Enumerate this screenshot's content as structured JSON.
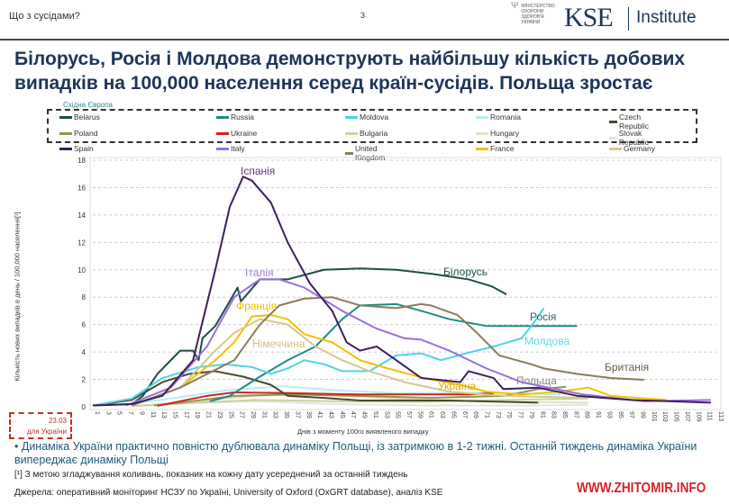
{
  "header": {
    "section": "Що з сусідами?",
    "page_number": "3",
    "ministry": "МІНІСТЕРСТВО ОХОРОНИ ЗДОРОВ'Я УКРАЇНИ",
    "brand": "KSE",
    "brand_suffix": "Institute"
  },
  "title": "Білорусь, Росія і Молдова демонструють найбільшу кількість добових випадків на 100,000 населення серед країн-сусідів. Польща зростає",
  "legend_group_label": "Східна Європа",
  "ukraine_start": {
    "date": "23.03",
    "label": "для України"
  },
  "bullet": "Динаміка України практично повністю дублювала динаміку Польщі, із затримкою в 1-2 тижні. Останній тиждень динаміка України випереджає динаміку Польщі",
  "footnote": "[¹] З метою згладжування коливань, показник на кожну дату усереднений за останній тиждень",
  "source": "Джерела: оперативний моніторинг НСЗУ по Україні, University of Oxford (OxGRT database), аналіз KSE",
  "watermark": "WWW.ZHITOMIR.INFO",
  "chart_data": {
    "type": "line",
    "title": "",
    "xlabel": "Днів з моменту 100го виявленого випадку",
    "ylabel": "Кількість нових випадків в день / 100,000 населення[¹]",
    "xlim": [
      1,
      113
    ],
    "ylim": [
      0,
      18
    ],
    "yticks": [
      "0",
      "2",
      "4",
      "6",
      "8",
      "10",
      "12",
      "14",
      "16",
      "18"
    ],
    "xticks": [
      "1",
      "3",
      "5",
      "7",
      "9",
      "11",
      "13",
      "15",
      "17",
      "19",
      "21",
      "23",
      "25",
      "27",
      "29",
      "31",
      "33",
      "35",
      "37",
      "39",
      "41",
      "43",
      "45",
      "47",
      "49",
      "51",
      "53",
      "55",
      "57",
      "59",
      "61",
      "63",
      "65",
      "67",
      "69",
      "71",
      "73",
      "75",
      "77",
      "79",
      "81",
      "83",
      "85",
      "87",
      "89",
      "91",
      "93",
      "95",
      "97",
      "99",
      "101",
      "103",
      "105",
      "107",
      "109",
      "111",
      "113"
    ],
    "grid": "horizontal dashed",
    "series": [
      {
        "name": "Belarus",
        "label": "Білорусь",
        "color": "#1e4f48",
        "points": [
          [
            1,
            0.1
          ],
          [
            8,
            0.2
          ],
          [
            10,
            0.8
          ],
          [
            12.6,
            2.4
          ],
          [
            15,
            3.4
          ],
          [
            16.7,
            4.1
          ],
          [
            19,
            4.1
          ],
          [
            20,
            3.4
          ],
          [
            20.7,
            5
          ],
          [
            23,
            5.9
          ],
          [
            26,
            8
          ],
          [
            27,
            8.7
          ],
          [
            27.6,
            7.7
          ],
          [
            31,
            9.3
          ],
          [
            36,
            9.3
          ],
          [
            42.5,
            10
          ],
          [
            49,
            10.1
          ],
          [
            55.5,
            10
          ],
          [
            62,
            9.7
          ],
          [
            68.5,
            9.3
          ],
          [
            72.6,
            8.8
          ],
          [
            75.3,
            8.2
          ]
        ]
      },
      {
        "name": "Russia",
        "label": "Росія",
        "color": "#1f8a86",
        "points": [
          [
            22,
            0.4
          ],
          [
            25.6,
            0.8
          ],
          [
            31,
            2.2
          ],
          [
            36,
            3.4
          ],
          [
            41,
            4.4
          ],
          [
            45.8,
            6.4
          ],
          [
            49,
            7.4
          ],
          [
            55.5,
            7.5
          ],
          [
            60,
            7
          ],
          [
            65,
            6.4
          ],
          [
            71.7,
            5.9
          ],
          [
            78,
            5.9
          ],
          [
            88,
            5.9
          ]
        ]
      },
      {
        "name": "Moldova",
        "label": "Молдова",
        "color": "#4fd3e3",
        "points": [
          [
            1,
            0.1
          ],
          [
            8,
            0.6
          ],
          [
            13.5,
            2.1
          ],
          [
            20,
            2.9
          ],
          [
            24.8,
            3.1
          ],
          [
            29.6,
            2.9
          ],
          [
            33,
            2.4
          ],
          [
            36,
            2.8
          ],
          [
            39,
            3.4
          ],
          [
            42.6,
            3.1
          ],
          [
            45.8,
            2.6
          ],
          [
            50.7,
            2.6
          ],
          [
            55.5,
            3.75
          ],
          [
            60,
            3.9
          ],
          [
            63.5,
            3.4
          ],
          [
            68,
            3.9
          ],
          [
            73,
            4.4
          ],
          [
            78,
            5
          ],
          [
            79.8,
            5.9
          ],
          [
            82,
            7.2
          ]
        ]
      },
      {
        "name": "Romania",
        "color": "#b9ecef",
        "points": [
          [
            5,
            0.1
          ],
          [
            15,
            0.6
          ],
          [
            25,
            1.2
          ],
          [
            35,
            1.5
          ],
          [
            45,
            1.2
          ],
          [
            55,
            1.0
          ],
          [
            65,
            1.0
          ],
          [
            75,
            1.0
          ],
          [
            85,
            0.9
          ]
        ]
      },
      {
        "name": "Czech Republic",
        "color": "#4a4a2a",
        "points": [
          [
            1,
            0.1
          ],
          [
            8,
            0.5
          ],
          [
            13.5,
            1.8
          ],
          [
            18.3,
            2.4
          ],
          [
            23,
            2.6
          ],
          [
            28,
            2.2
          ],
          [
            33,
            1.6
          ],
          [
            36,
            0.8
          ],
          [
            42.6,
            0.65
          ],
          [
            49,
            0.46
          ],
          [
            65,
            0.46
          ],
          [
            81,
            0.3
          ]
        ]
      },
      {
        "name": "Poland",
        "label": "Польща",
        "color": "#8a9a4a",
        "points": [
          [
            12,
            0.1
          ],
          [
            16.7,
            0.3
          ],
          [
            26.4,
            0.8
          ],
          [
            36,
            0.9
          ],
          [
            49,
            0.8
          ],
          [
            61.7,
            0.65
          ],
          [
            75,
            0.8
          ],
          [
            81,
            1.3
          ],
          [
            86,
            1.45
          ]
        ]
      },
      {
        "name": "Ukraine",
        "label": "Україна",
        "color": "#d42020",
        "points": [
          [
            12.6,
            0.07
          ],
          [
            21.5,
            0.8
          ],
          [
            26.4,
            1.05
          ],
          [
            36,
            1
          ],
          [
            49,
            0.9
          ],
          [
            58.6,
            0.9
          ],
          [
            68.5,
            0.9
          ],
          [
            73,
            1
          ]
        ]
      },
      {
        "name": "Bulgaria",
        "color": "#c8d3a0",
        "points": [
          [
            8,
            0.05
          ],
          [
            20,
            0.3
          ],
          [
            30,
            0.5
          ],
          [
            45,
            0.4
          ],
          [
            60,
            0.35
          ],
          [
            75,
            0.5
          ],
          [
            90,
            0.6
          ]
        ]
      },
      {
        "name": "Hungary",
        "color": "#e3e0c0",
        "points": [
          [
            8,
            0.05
          ],
          [
            20,
            0.4
          ],
          [
            30,
            0.8
          ],
          [
            40,
            0.9
          ],
          [
            55,
            0.6
          ],
          [
            70,
            0.4
          ],
          [
            90,
            0.3
          ]
        ]
      },
      {
        "name": "Slovak Republic",
        "color": "#e4e4e4",
        "points": [
          [
            8,
            0.05
          ],
          [
            20,
            0.3
          ],
          [
            30,
            0.4
          ],
          [
            45,
            0.2
          ],
          [
            60,
            0.1
          ],
          [
            80,
            0.1
          ],
          [
            90,
            0.15
          ]
        ]
      },
      {
        "name": "Spain",
        "label": "Іспанія",
        "color": "#3d1f5e",
        "points": [
          [
            1,
            0.1
          ],
          [
            8,
            0.2
          ],
          [
            13.5,
            0.8
          ],
          [
            19,
            3.4
          ],
          [
            23,
            10
          ],
          [
            25.6,
            14.6
          ],
          [
            28,
            16.8
          ],
          [
            29.6,
            16.5
          ],
          [
            33,
            14.9
          ],
          [
            36,
            12
          ],
          [
            40,
            9
          ],
          [
            44,
            7
          ],
          [
            46.6,
            4.7
          ],
          [
            49,
            4.1
          ],
          [
            52,
            4.4
          ],
          [
            55.5,
            3.4
          ],
          [
            60,
            2.1
          ],
          [
            67,
            1.8
          ],
          [
            68.5,
            2.6
          ],
          [
            73,
            2.1
          ],
          [
            74.7,
            1.3
          ],
          [
            81,
            1.4
          ],
          [
            88,
            0.8
          ],
          [
            97.6,
            0.5
          ],
          [
            112,
            0.3
          ]
        ]
      },
      {
        "name": "Italy",
        "label": "Італія",
        "color": "#9a6ee0",
        "points": [
          [
            7,
            0.1
          ],
          [
            15,
            1.4
          ],
          [
            21.5,
            4.4
          ],
          [
            26.4,
            8
          ],
          [
            31,
            9.3
          ],
          [
            34.5,
            9.3
          ],
          [
            39,
            8.7
          ],
          [
            45.8,
            7
          ],
          [
            52,
            5.7
          ],
          [
            57,
            5
          ],
          [
            60,
            4.9
          ],
          [
            65,
            4.1
          ],
          [
            71.7,
            2.8
          ],
          [
            78,
            1.8
          ],
          [
            89,
            0.9
          ],
          [
            100,
            0.4
          ],
          [
            112,
            0.5
          ]
        ]
      },
      {
        "name": "United Kingdom",
        "label": "Британія",
        "color": "#8a7d5a",
        "points": [
          [
            8,
            0.1
          ],
          [
            16.7,
            1.4
          ],
          [
            26.4,
            3.4
          ],
          [
            31,
            6
          ],
          [
            34.5,
            7.4
          ],
          [
            39,
            7.9
          ],
          [
            44,
            8
          ],
          [
            49,
            7.4
          ],
          [
            55.5,
            7.2
          ],
          [
            60,
            7.5
          ],
          [
            61.7,
            7.4
          ],
          [
            66.5,
            6.7
          ],
          [
            70,
            5.4
          ],
          [
            74,
            3.75
          ],
          [
            79.8,
            3.1
          ],
          [
            82,
            2.8
          ],
          [
            88,
            2.4
          ],
          [
            94,
            2.1
          ],
          [
            100,
            1.97
          ]
        ]
      },
      {
        "name": "France",
        "label": "Франція",
        "color": "#f2c200",
        "points": [
          [
            8,
            0.1
          ],
          [
            16.7,
            1.4
          ],
          [
            23,
            3.4
          ],
          [
            26.4,
            4.7
          ],
          [
            29.6,
            6.6
          ],
          [
            33,
            6.7
          ],
          [
            36,
            6.4
          ],
          [
            39,
            5.3
          ],
          [
            44,
            4.7
          ],
          [
            49,
            3.4
          ],
          [
            54,
            2.8
          ],
          [
            60.4,
            2.1
          ],
          [
            67,
            1.6
          ],
          [
            71.7,
            1.1
          ],
          [
            78,
            0.9
          ],
          [
            84.7,
            1.1
          ],
          [
            90,
            1.4
          ],
          [
            94,
            0.8
          ],
          [
            104,
            0.5
          ]
        ]
      },
      {
        "name": "Germany",
        "label": "Німеччина",
        "color": "#d8c888",
        "points": [
          [
            8,
            0.1
          ],
          [
            16.7,
            1.4
          ],
          [
            23,
            4.1
          ],
          [
            26.4,
            5.4
          ],
          [
            31,
            6.4
          ],
          [
            36,
            6
          ],
          [
            41,
            4.4
          ],
          [
            45.8,
            3.4
          ],
          [
            50.7,
            2.6
          ],
          [
            57,
            1.8
          ],
          [
            65,
            1.1
          ],
          [
            75,
            0.8
          ],
          [
            89.6,
            0.65
          ]
        ]
      }
    ]
  }
}
